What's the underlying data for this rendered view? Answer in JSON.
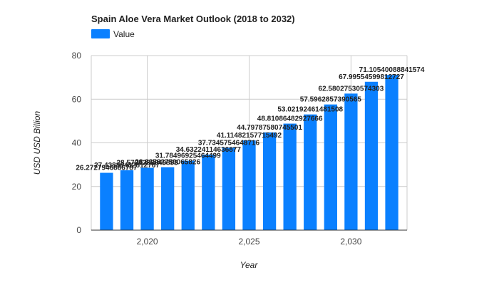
{
  "chart_data": {
    "type": "bar",
    "title": "Spain Aloe Vera Market Outlook (2018 to 2032)",
    "xlabel": "Year",
    "ylabel": "USD USD Billion",
    "legend": {
      "position": "top-left",
      "entries": [
        "Value"
      ]
    },
    "x": [
      2018,
      2019,
      2020,
      2021,
      2022,
      2023,
      2024,
      2025,
      2026,
      2027,
      2028,
      2029,
      2030,
      2031,
      2032
    ],
    "x_ticks": [
      2020,
      2025,
      2030
    ],
    "x_tick_labels": [
      "2,020",
      "2,025",
      "2,030"
    ],
    "xlim": [
      2017.25,
      2032.75
    ],
    "ylim": [
      0,
      80
    ],
    "y_ticks": [
      0,
      20,
      40,
      60,
      80
    ],
    "y_tick_labels": [
      "0",
      "20",
      "40",
      "60",
      "80"
    ],
    "grid": true,
    "series": [
      {
        "name": "Value",
        "color": "#0a80ff",
        "values": [
          26.2727946886787,
          27.43889432812767,
          28.5709285049893,
          28.83582759065826,
          31.78496925464499,
          34.63224114636877,
          37.7345754648716,
          41.11482157715492,
          44.79787580745501,
          48.81086482927666,
          53.02192461481508,
          57.5962857390565,
          62.58027530574303,
          67.99554599812727,
          71.10540088841574
        ],
        "data_labels": [
          "26.2727946886787",
          "27.43889432812767",
          "28.5709285049893",
          "28.83582759065826",
          "31.78496925464499",
          "34.63224114636877",
          "37.7345754648716",
          "41.11482157715492",
          "44.79787580745501",
          "48.81086482927666",
          "53.02192461481508",
          "57.5962857390565",
          "62.58027530574303",
          "67.99554599812727",
          "71.10540088841574"
        ]
      }
    ]
  }
}
